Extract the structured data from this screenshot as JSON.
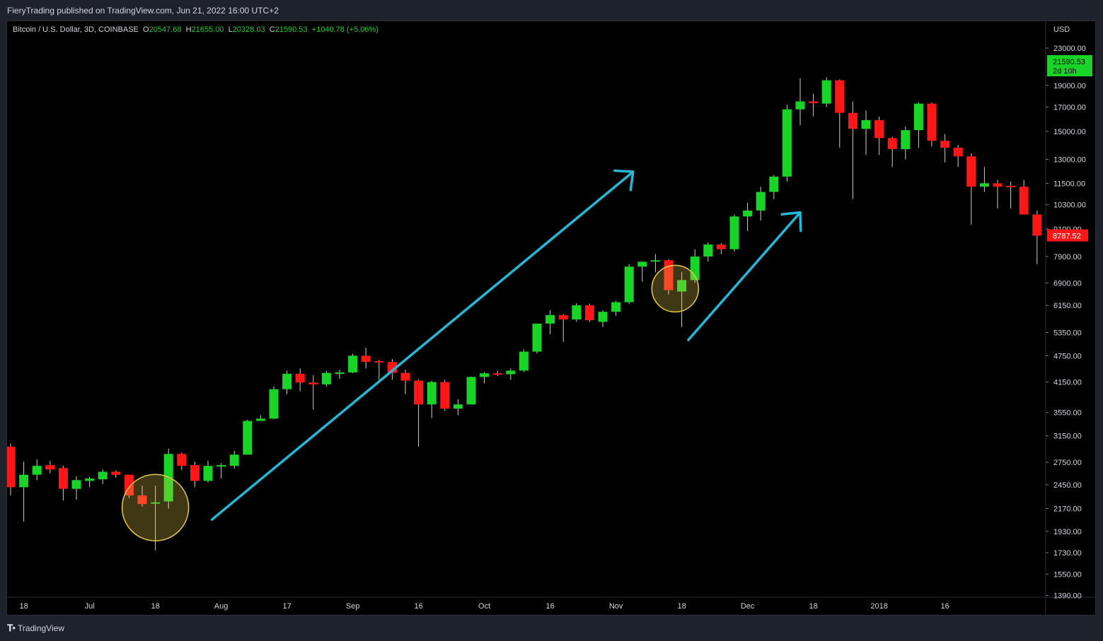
{
  "header": {
    "publisher": "FieryTrading published on TradingView.com, Jun 21, 2022 16:00 UTC+2"
  },
  "symbol_line": {
    "name": "Bitcoin / U.S. Dollar, 3D, COINBASE",
    "open_label": "O",
    "open": "20547.68",
    "high_label": "H",
    "high": "21655.00",
    "low_label": "L",
    "low": "20328.03",
    "close_label": "C",
    "close": "21590.53",
    "change": "+1040.78 (+5.06%)"
  },
  "footer": {
    "brand": "TradingView"
  },
  "colors": {
    "up": "#17d427",
    "down": "#ff1717",
    "wick": "#cfcfcf",
    "arrow": "#26b6d6",
    "circle": "#e6c84a",
    "background": "#000000"
  },
  "chart_data": {
    "type": "candlestick",
    "scale": "log",
    "currency": "USD",
    "ylim": [
      1340,
      27000
    ],
    "y_ticks": [
      23000,
      19000,
      17000,
      15000,
      13000,
      11500,
      10300,
      9100,
      7900,
      6900,
      6150,
      5350,
      4750,
      4150,
      3550,
      3150,
      2750,
      2450,
      2170,
      1930,
      1730,
      1550,
      1390
    ],
    "y_tick_labels": [
      "23000.00",
      "19000.00",
      "17000.00",
      "15000.00",
      "13000.00",
      "11500.00",
      "10300.00",
      "9100.00",
      "7900.00",
      "6900.00",
      "6150.00",
      "5350.00",
      "4750.00",
      "4150.00",
      "3550.00",
      "3150.00",
      "2750.00",
      "2450.00",
      "2170.00",
      "1930.00",
      "1730.00",
      "1550.00",
      "1390.00"
    ],
    "x_ticks": [
      {
        "label": "18",
        "index": 1
      },
      {
        "label": "Jul",
        "index": 6
      },
      {
        "label": "18",
        "index": 11
      },
      {
        "label": "Aug",
        "index": 16
      },
      {
        "label": "17",
        "index": 21
      },
      {
        "label": "Sep",
        "index": 26
      },
      {
        "label": "16",
        "index": 31
      },
      {
        "label": "Oct",
        "index": 36
      },
      {
        "label": "16",
        "index": 41
      },
      {
        "label": "Nov",
        "index": 46
      },
      {
        "label": "18",
        "index": 51
      },
      {
        "label": "Dec",
        "index": 56
      },
      {
        "label": "18",
        "index": 61
      },
      {
        "label": "2018",
        "index": 66
      },
      {
        "label": "16",
        "index": 71
      }
    ],
    "candles": [
      [
        2980,
        3030,
        2320,
        2420
      ],
      [
        2420,
        2760,
        2030,
        2580
      ],
      [
        2580,
        2790,
        2510,
        2700
      ],
      [
        2710,
        2770,
        2600,
        2650
      ],
      [
        2670,
        2700,
        2260,
        2400
      ],
      [
        2400,
        2560,
        2270,
        2510
      ],
      [
        2500,
        2550,
        2420,
        2530
      ],
      [
        2520,
        2650,
        2460,
        2620
      ],
      [
        2620,
        2640,
        2540,
        2580
      ],
      [
        2580,
        2580,
        2290,
        2320
      ],
      [
        2320,
        2440,
        2190,
        2220
      ],
      [
        2230,
        2440,
        1750,
        2240
      ],
      [
        2250,
        2950,
        2170,
        2870
      ],
      [
        2870,
        2890,
        2640,
        2700
      ],
      [
        2710,
        2760,
        2420,
        2500
      ],
      [
        2500,
        2770,
        2480,
        2700
      ],
      [
        2690,
        2740,
        2530,
        2710
      ],
      [
        2700,
        2920,
        2660,
        2860
      ],
      [
        2860,
        3420,
        2860,
        3400
      ],
      [
        3400,
        3500,
        3400,
        3440
      ],
      [
        3440,
        4060,
        3430,
        4000
      ],
      [
        4000,
        4400,
        3900,
        4330
      ],
      [
        4330,
        4450,
        3960,
        4140
      ],
      [
        4140,
        4300,
        3600,
        4100
      ],
      [
        4100,
        4400,
        4050,
        4350
      ],
      [
        4350,
        4420,
        4220,
        4360
      ],
      [
        4360,
        4800,
        4340,
        4750
      ],
      [
        4750,
        4950,
        4450,
        4600
      ],
      [
        4620,
        4650,
        4200,
        4600
      ],
      [
        4600,
        4670,
        4200,
        4350
      ],
      [
        4350,
        4420,
        3900,
        4180
      ],
      [
        4180,
        4210,
        2980,
        3700
      ],
      [
        3700,
        4180,
        3450,
        4150
      ],
      [
        4150,
        4200,
        3580,
        3620
      ],
      [
        3620,
        3800,
        3500,
        3700
      ],
      [
        3700,
        4270,
        3700,
        4260
      ],
      [
        4260,
        4370,
        4120,
        4340
      ],
      [
        4340,
        4400,
        4280,
        4320
      ],
      [
        4320,
        4450,
        4200,
        4400
      ],
      [
        4400,
        4900,
        4370,
        4850
      ],
      [
        4850,
        5600,
        4800,
        5600
      ],
      [
        5600,
        6000,
        5300,
        5850
      ],
      [
        5850,
        5880,
        5100,
        5720
      ],
      [
        5720,
        6220,
        5650,
        6150
      ],
      [
        6150,
        6200,
        5650,
        5700
      ],
      [
        5650,
        6000,
        5500,
        5950
      ],
      [
        5950,
        6300,
        5830,
        6250
      ],
      [
        6250,
        7600,
        6200,
        7500
      ],
      [
        7500,
        7700,
        6950,
        7690
      ],
      [
        7700,
        8000,
        7280,
        7750
      ],
      [
        7750,
        7800,
        6500,
        6650
      ],
      [
        6600,
        7300,
        5500,
        7000
      ],
      [
        7000,
        8200,
        6900,
        7900
      ],
      [
        7900,
        8500,
        7700,
        8400
      ],
      [
        8400,
        8460,
        8000,
        8200
      ],
      [
        8200,
        9800,
        8100,
        9700
      ],
      [
        9700,
        10400,
        9000,
        10000
      ],
      [
        10000,
        11300,
        9500,
        11000
      ],
      [
        11000,
        12000,
        10600,
        11900
      ],
      [
        11900,
        17200,
        11600,
        16800
      ],
      [
        16800,
        19700,
        15500,
        17500
      ],
      [
        17500,
        18200,
        16200,
        17350
      ],
      [
        17300,
        19800,
        17000,
        19500
      ],
      [
        19500,
        19600,
        13800,
        16500
      ],
      [
        16500,
        17500,
        10600,
        15200
      ],
      [
        15200,
        16700,
        13300,
        15900
      ],
      [
        15900,
        16200,
        13300,
        14500
      ],
      [
        14500,
        14600,
        12500,
        13700
      ],
      [
        13700,
        15400,
        13000,
        15100
      ],
      [
        15100,
        17400,
        13800,
        17300
      ],
      [
        17300,
        17400,
        13900,
        14300
      ],
      [
        14300,
        14800,
        12800,
        13800
      ],
      [
        13800,
        14000,
        12500,
        13200
      ],
      [
        13200,
        13400,
        9300,
        11300
      ],
      [
        11300,
        12500,
        11000,
        11500
      ],
      [
        11500,
        11700,
        10100,
        11300
      ],
      [
        11350,
        11600,
        10100,
        11300
      ],
      [
        11300,
        11700,
        9800,
        9800
      ],
      [
        9800,
        10000,
        7600,
        8787.52
      ]
    ],
    "last_price_label": "21590.53",
    "last_price_countdown": "2d 10h",
    "current_price_label": "8787.52",
    "annotations": [
      {
        "type": "arrow",
        "from_index": 15.3,
        "from_price": 2050,
        "to_index": 47.3,
        "to_price": 12200
      },
      {
        "type": "arrow",
        "from_index": 51.5,
        "from_price": 5150,
        "to_index": 60.0,
        "to_price": 9900
      },
      {
        "type": "circle",
        "center_index": 11,
        "center_price": 2180
      },
      {
        "type": "circle",
        "center_index": 50.5,
        "center_price": 6700
      }
    ]
  }
}
